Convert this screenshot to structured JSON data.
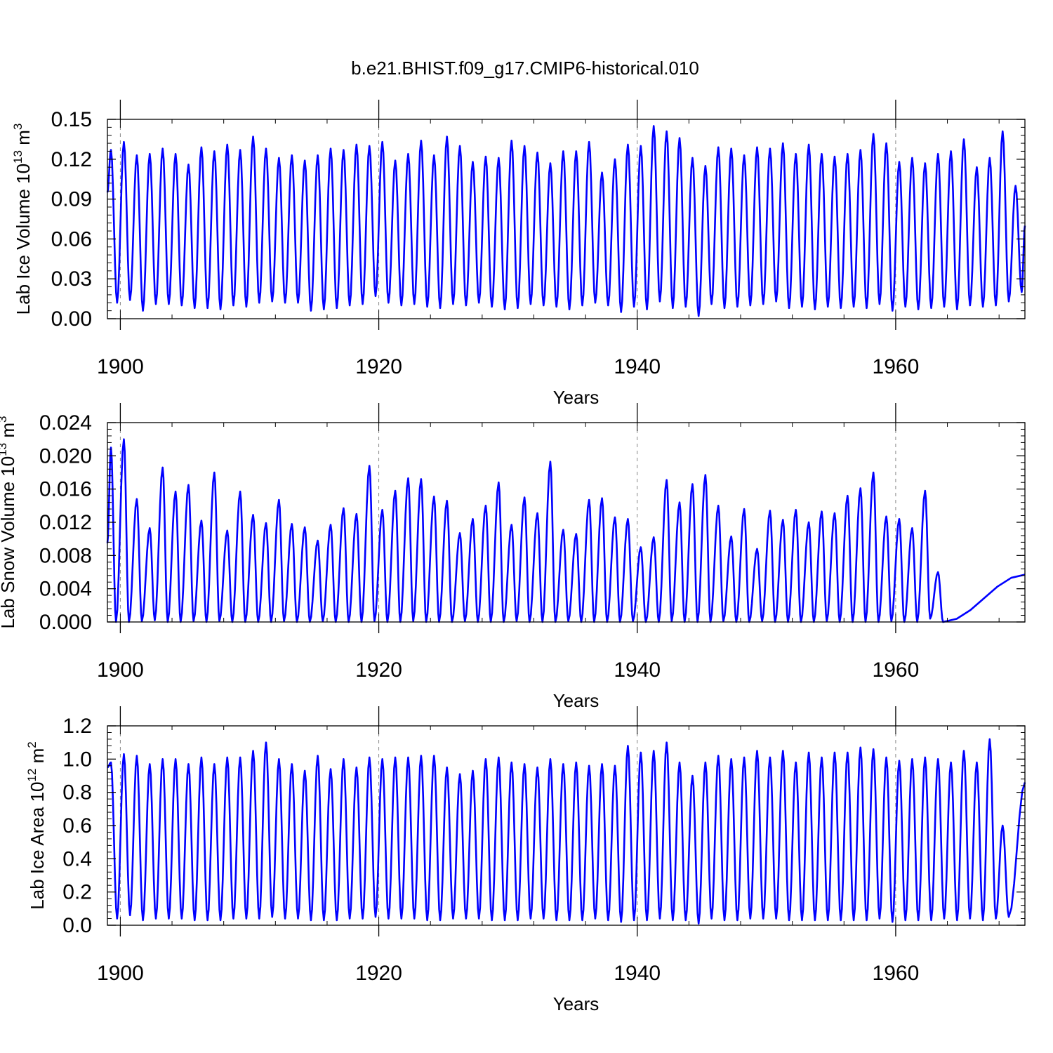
{
  "title": "b.e21.BHIST.f09_g17.CMIP6-historical.010",
  "series_color": "#0000ff",
  "chart_data": [
    {
      "type": "line",
      "ylabel_main": "Lab Ice Volume 10",
      "ylabel_exp": "13",
      "ylabel_unit": "m",
      "ylabel_unit_exp": "3",
      "xlabel": "Years",
      "xlim": [
        1899.0,
        1970.0
      ],
      "ylim": [
        0.0,
        0.15
      ],
      "xticks": [
        1900,
        1920,
        1940,
        1960
      ],
      "yticks": [
        "0.00",
        "0.03",
        "0.06",
        "0.09",
        "0.12",
        "0.15"
      ],
      "series": [
        {
          "name": "Lab Ice Volume",
          "start_year": 1899.0,
          "trough_month": 9,
          "start_value": 0.095,
          "end_value": 0.07,
          "peaks": [
            0.127,
            0.133,
            0.123,
            0.124,
            0.128,
            0.124,
            0.116,
            0.129,
            0.126,
            0.131,
            0.127,
            0.137,
            0.128,
            0.121,
            0.123,
            0.119,
            0.123,
            0.128,
            0.127,
            0.131,
            0.13,
            0.133,
            0.119,
            0.124,
            0.134,
            0.123,
            0.137,
            0.13,
            0.118,
            0.122,
            0.121,
            0.134,
            0.13,
            0.125,
            0.117,
            0.126,
            0.126,
            0.133,
            0.11,
            0.12,
            0.131,
            0.13,
            0.145,
            0.141,
            0.136,
            0.121,
            0.115,
            0.129,
            0.128,
            0.123,
            0.129,
            0.128,
            0.132,
            0.124,
            0.131,
            0.124,
            0.122,
            0.124,
            0.127,
            0.139,
            0.132,
            0.118,
            0.121,
            0.117,
            0.124,
            0.126,
            0.135,
            0.114,
            0.121,
            0.141,
            0.1
          ],
          "troughs": [
            0.012,
            0.014,
            0.006,
            0.011,
            0.011,
            0.01,
            0.008,
            0.008,
            0.007,
            0.01,
            0.009,
            0.012,
            0.013,
            0.012,
            0.012,
            0.006,
            0.007,
            0.008,
            0.01,
            0.011,
            0.017,
            0.012,
            0.01,
            0.011,
            0.009,
            0.008,
            0.011,
            0.01,
            0.012,
            0.009,
            0.007,
            0.008,
            0.011,
            0.01,
            0.009,
            0.007,
            0.01,
            0.012,
            0.01,
            0.005,
            0.009,
            0.007,
            0.013,
            0.008,
            0.009,
            0.002,
            0.011,
            0.008,
            0.009,
            0.01,
            0.011,
            0.013,
            0.008,
            0.009,
            0.007,
            0.009,
            0.008,
            0.009,
            0.008,
            0.011,
            0.006,
            0.009,
            0.007,
            0.008,
            0.009,
            0.007,
            0.01,
            0.009,
            0.01,
            0.013,
            0.02
          ]
        }
      ]
    },
    {
      "type": "line",
      "ylabel_main": "Lab Snow Volume 10",
      "ylabel_exp": "13",
      "ylabel_unit": "m",
      "ylabel_unit_exp": "3",
      "xlabel": "Years",
      "xlim": [
        1899.0,
        1970.0
      ],
      "ylim": [
        0.0,
        0.024
      ],
      "xticks": [
        1900,
        1920,
        1940,
        1960
      ],
      "yticks": [
        "0.000",
        "0.004",
        "0.008",
        "0.012",
        "0.016",
        "0.020",
        "0.024"
      ],
      "series": [
        {
          "name": "Lab Snow Volume",
          "start_year": 1899.0,
          "trough_month": 8,
          "start_value": 0.0095,
          "end_value": 0.0057,
          "peaks": [
            0.021,
            0.022,
            0.0148,
            0.0113,
            0.0186,
            0.0157,
            0.0165,
            0.0122,
            0.018,
            0.011,
            0.0157,
            0.0129,
            0.0119,
            0.0147,
            0.0118,
            0.0114,
            0.0098,
            0.0117,
            0.0137,
            0.013,
            0.0188,
            0.0135,
            0.0158,
            0.0173,
            0.0172,
            0.0151,
            0.0146,
            0.0107,
            0.0124,
            0.014,
            0.0168,
            0.0117,
            0.015,
            0.0131,
            0.0193,
            0.0111,
            0.0106,
            0.0147,
            0.0149,
            0.0126,
            0.0124,
            0.009,
            0.0102,
            0.0171,
            0.0144,
            0.0166,
            0.0177,
            0.014,
            0.0103,
            0.0136,
            0.0088,
            0.0134,
            0.0123,
            0.0135,
            0.012,
            0.0133,
            0.0131,
            0.0152,
            0.0161,
            0.018,
            0.0127,
            0.0124,
            0.0113,
            0.0158,
            0.006
          ],
          "troughs": [
            0.0,
            0.0,
            0.0001,
            0.0002,
            0.0,
            0.0,
            0.0001,
            0.0,
            0.0001,
            0.0,
            0.0,
            0.0,
            0.0,
            0.0001,
            0.0,
            0.0,
            0.0001,
            0.0,
            0.0,
            0.0,
            0.0001,
            0.0,
            0.0,
            0.0001,
            0.0,
            0.0,
            0.0,
            0.0001,
            0.0,
            0.0,
            0.0,
            0.0001,
            0.0,
            0.0,
            0.0,
            0.0001,
            0.0,
            0.0,
            0.0,
            0.0,
            0.0001,
            0.0,
            0.0,
            0.0001,
            0.0,
            0.0,
            0.0,
            0.0001,
            0.0,
            0.0,
            0.0001,
            0.0,
            0.0,
            0.0,
            0.0,
            0.0001,
            0.0,
            0.0,
            0.0,
            0.0,
            0.0001,
            0.0,
            0.0,
            0.0004,
            0.0
          ]
        }
      ]
    },
    {
      "type": "line",
      "ylabel_main": "Lab Ice Area 10",
      "ylabel_exp": "12",
      "ylabel_unit": "m",
      "ylabel_unit_exp": "2",
      "xlabel": "Years",
      "xlim": [
        1899.0,
        1970.0
      ],
      "ylim": [
        0.0,
        1.2
      ],
      "xticks": [
        1900,
        1920,
        1940,
        1960
      ],
      "yticks": [
        "0.0",
        "0.2",
        "0.4",
        "0.6",
        "0.8",
        "1.0",
        "1.2"
      ],
      "series": [
        {
          "name": "Lab Ice Area",
          "start_year": 1899.0,
          "trough_month": 9,
          "start_value": 0.95,
          "end_value": 0.86,
          "peaks": [
            0.98,
            1.03,
            1.02,
            0.97,
            1.0,
            1.0,
            0.97,
            1.01,
            0.97,
            1.01,
            1.01,
            1.05,
            1.1,
            1.0,
            0.97,
            0.93,
            1.02,
            0.94,
            1.0,
            0.95,
            1.01,
            1.0,
            1.01,
            1.01,
            1.02,
            1.02,
            0.95,
            0.91,
            0.93,
            1.0,
            1.01,
            0.98,
            0.97,
            0.95,
            1.0,
            0.97,
            0.98,
            0.96,
            0.97,
            0.96,
            1.08,
            1.04,
            1.05,
            1.1,
            0.98,
            0.9,
            0.98,
            1.02,
            1.0,
            1.01,
            1.05,
            1.01,
            1.05,
            0.98,
            1.04,
            1.01,
            1.04,
            1.04,
            1.07,
            1.06,
            1.01,
            0.99,
            1.0,
            1.01,
            1.0,
            0.98,
            1.05,
            0.98,
            1.12,
            0.6
          ],
          "troughs": [
            0.04,
            0.06,
            0.03,
            0.04,
            0.04,
            0.04,
            0.03,
            0.03,
            0.03,
            0.04,
            0.04,
            0.04,
            0.05,
            0.04,
            0.04,
            0.03,
            0.03,
            0.03,
            0.04,
            0.04,
            0.05,
            0.04,
            0.04,
            0.04,
            0.03,
            0.03,
            0.04,
            0.04,
            0.04,
            0.03,
            0.03,
            0.03,
            0.04,
            0.04,
            0.03,
            0.03,
            0.03,
            0.04,
            0.03,
            0.02,
            0.03,
            0.03,
            0.04,
            0.03,
            0.03,
            0.01,
            0.04,
            0.03,
            0.03,
            0.04,
            0.04,
            0.04,
            0.03,
            0.03,
            0.03,
            0.03,
            0.03,
            0.03,
            0.03,
            0.04,
            0.02,
            0.03,
            0.03,
            0.03,
            0.04,
            0.03,
            0.04,
            0.03,
            0.04,
            0.05
          ]
        }
      ]
    }
  ]
}
